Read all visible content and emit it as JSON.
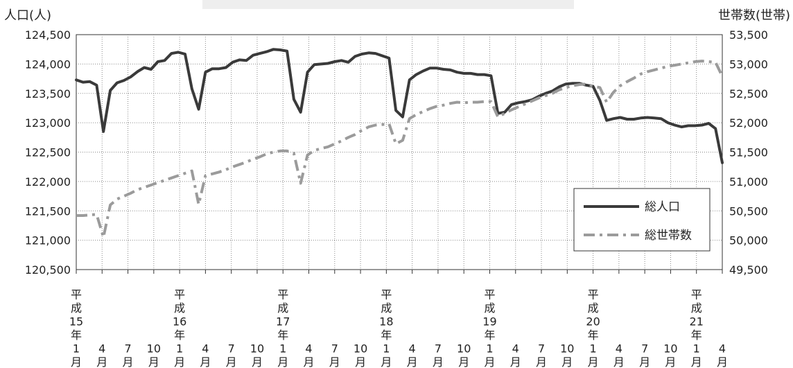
{
  "chart_data": {
    "type": "line",
    "ylabel_left": "人口(人)",
    "ylabel_right": "世帯数(世帯)",
    "ylim_left": [
      120500,
      124500
    ],
    "ylim_right": [
      49500,
      53500
    ],
    "yticks_left": [
      "124,500",
      "124,000",
      "123,500",
      "123,000",
      "122,500",
      "122,000",
      "121,500",
      "121,000",
      "120,500"
    ],
    "yticks_right": [
      "53,500",
      "53,000",
      "52,500",
      "52,000",
      "51,500",
      "51,000",
      "50,500",
      "50,000",
      "49,500"
    ],
    "x_labels": [
      "平成15年1月",
      "4月",
      "7月",
      "10月",
      "平成16年1月",
      "4月",
      "7月",
      "10月",
      "平成17年1月",
      "4月",
      "7月",
      "10月",
      "平成18年1月",
      "4月",
      "7月",
      "10月",
      "平成19年1月",
      "4月",
      "7月",
      "10月",
      "平成20年1月",
      "4月",
      "7月",
      "10月",
      "平成21年1月",
      "4月"
    ],
    "legend_position": "bottom-right",
    "grid": true,
    "series": [
      {
        "name": "総人口",
        "axis": "left",
        "color": "#3a3a3a",
        "style": "solid",
        "values": [
          123730,
          123690,
          123700,
          123640,
          122850,
          123550,
          123680,
          123720,
          123780,
          123870,
          123940,
          123910,
          124040,
          124060,
          124180,
          124200,
          124170,
          123580,
          123230,
          123860,
          123920,
          123920,
          123940,
          124030,
          124070,
          124060,
          124150,
          124180,
          124210,
          124250,
          124240,
          124220,
          123400,
          123180,
          123860,
          123990,
          124000,
          124010,
          124040,
          124060,
          124030,
          124130,
          124170,
          124190,
          124180,
          124140,
          124100,
          123210,
          123100,
          123730,
          123820,
          123880,
          123930,
          123930,
          123910,
          123900,
          123860,
          123840,
          123840,
          123820,
          123820,
          123800,
          123160,
          123180,
          123310,
          123340,
          123360,
          123390,
          123450,
          123500,
          123540,
          123610,
          123660,
          123670,
          123670,
          123640,
          123620,
          123380,
          123040,
          123070,
          123090,
          123060,
          123060,
          123080,
          123090,
          123080,
          123070,
          123000,
          122960,
          122930,
          122950,
          122950,
          122960,
          122990,
          122900,
          122320
        ]
      },
      {
        "name": "総世帯数",
        "axis": "right",
        "color": "#9b9b9b",
        "style": "dash-dot",
        "values": [
          50420,
          50420,
          50430,
          50440,
          50050,
          50600,
          50700,
          50750,
          50800,
          50860,
          50900,
          50940,
          50980,
          51020,
          51060,
          51100,
          51140,
          51180,
          50610,
          51100,
          51130,
          51160,
          51200,
          51250,
          51290,
          51330,
          51380,
          51420,
          51470,
          51500,
          51520,
          51520,
          51480,
          50970,
          51450,
          51530,
          51560,
          51590,
          51640,
          51690,
          51750,
          51800,
          51870,
          51930,
          51960,
          51970,
          51980,
          51640,
          51700,
          52070,
          52140,
          52190,
          52240,
          52280,
          52300,
          52330,
          52350,
          52340,
          52350,
          52350,
          52360,
          52360,
          52100,
          52160,
          52220,
          52270,
          52320,
          52370,
          52420,
          52460,
          52500,
          52560,
          52600,
          52630,
          52650,
          52660,
          52620,
          52600,
          52350,
          52520,
          52630,
          52700,
          52760,
          52830,
          52870,
          52900,
          52930,
          52960,
          52980,
          53000,
          53020,
          53040,
          53050,
          53040,
          53030,
          52790
        ]
      }
    ]
  }
}
